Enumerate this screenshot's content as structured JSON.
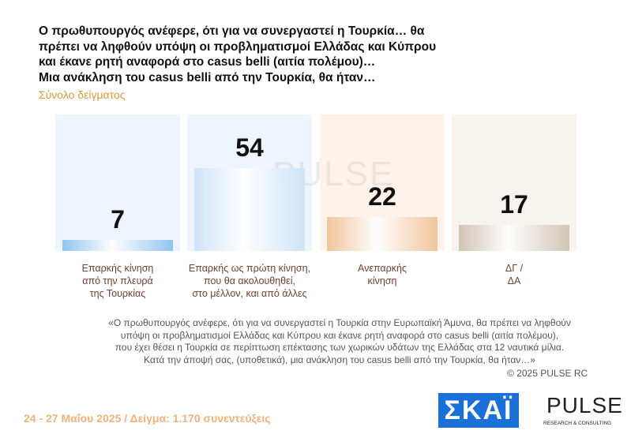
{
  "chart_data": {
    "type": "bar",
    "title": "Ο πρωθυπουργός ανέφερε, ότι για να συνεργαστεί η Τουρκία… θα\nπρέπει να ληφθούν υπόψη οι προβληματισμοί Ελλάδας και Κύπρου\nκαι έκανε ρητή αναφορά στο casus belli (αιτία πολέμου)…\nΜια ανάκληση του casus belli από την Τουρκία, θα ήταν…",
    "subtitle": "Σύνολο δείγματος",
    "categories": [
      "Επαρκής κίνηση\nαπό την πλευρά\nτης Τουρκίας",
      "Επαρκής ως πρώτη κίνηση,\nπου θα ακολουθηθεί,\nστο μέλλον, και από άλλες",
      "Ανεπαρκής\nκίνηση",
      "ΔΓ /\nΔΑ"
    ],
    "values": [
      7,
      54,
      22,
      17
    ],
    "colors": [
      "#8cc2ee",
      "#cde3f7",
      "#f0c299",
      "#cfc2b2"
    ],
    "footnote": "«Ο πρωθυπουργός ανέφερε, ότι για να συνεργαστεί η Τουρκία στην Ευρωπαϊκή Άμυνα, θα πρέπει να ληφθούν\nυπόψη οι προβληματισμοί Ελλάδας και Κύπρου και έκανε ρητή αναφορά στο casus belli (αιτία πολέμου),\nπου έχει θέσει η Τουρκία σε περίπτωση επέκτασης των χωρικών υδάτων της Ελλάδας στα 12 ναυτικά μίλια.\nΚατά την άποψή σας, (υποθετικά), μια ανάκληση του casus belli από την Τουρκία, θα ήταν…»",
    "copyright": "©  2025  PULSE RC",
    "fieldwork": "24 - 27 Μαΐου 2025  /  Δείγμα:  1.170 συνεντεύξεις",
    "logo_skai": "ΣΚΑΪ",
    "logo_pulse": "PULSE",
    "logo_pulse_sub": "RESEARCH & CONSULTING"
  }
}
